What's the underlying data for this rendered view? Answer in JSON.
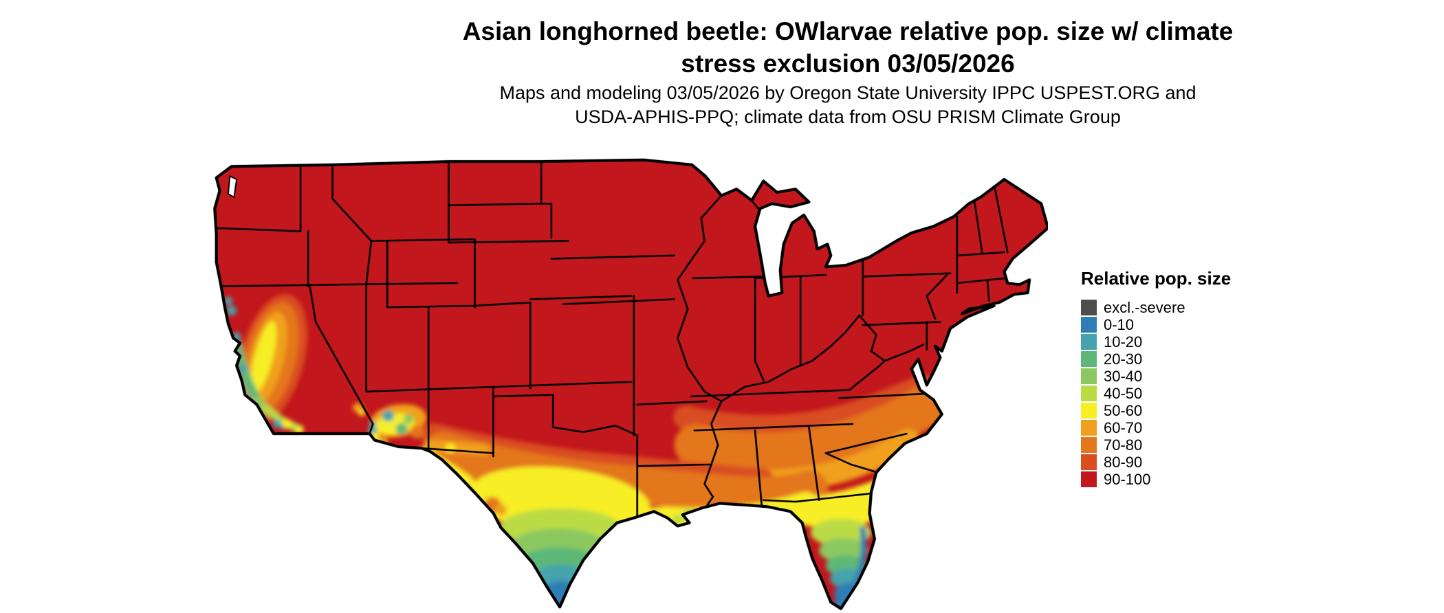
{
  "title": {
    "line1": "Asian longhorned beetle: OWlarvae relative pop. size w/ climate",
    "line2": "stress exclusion 03/05/2026"
  },
  "subtitle": {
    "line1": "Maps and modeling 03/05/2026 by Oregon State University IPPC USPEST.ORG and",
    "line2": "USDA-APHIS-PPQ; climate data from OSU PRISM Climate Group"
  },
  "legend": {
    "title": "Relative pop. size",
    "items": [
      {
        "label": "excl.-severe",
        "color": "#4D4D4D"
      },
      {
        "label": "0-10",
        "color": "#2E7EB5"
      },
      {
        "label": "10-20",
        "color": "#45A3AD"
      },
      {
        "label": "20-30",
        "color": "#5DB878"
      },
      {
        "label": "30-40",
        "color": "#8CC860"
      },
      {
        "label": "40-50",
        "color": "#BBDB45"
      },
      {
        "label": "50-60",
        "color": "#F7EE26"
      },
      {
        "label": "60-70",
        "color": "#F0A01E"
      },
      {
        "label": "70-80",
        "color": "#E4761F"
      },
      {
        "label": "80-90",
        "color": "#D94D20"
      },
      {
        "label": "90-100",
        "color": "#C2171D"
      }
    ]
  },
  "map": {
    "region": "Continental United States",
    "border_color": "#000000",
    "water_background": "#FFFFFF",
    "dominant_bin": "90-100"
  },
  "chart_data": {
    "type": "heatmap",
    "title": "Asian longhorned beetle: OWlarvae relative pop. size w/ climate stress exclusion 03/05/2026",
    "legend_title": "Relative pop. size",
    "legend_position": "right",
    "bins": [
      "excl.-severe",
      "0-10",
      "10-20",
      "20-30",
      "30-40",
      "40-50",
      "50-60",
      "60-70",
      "70-80",
      "80-90",
      "90-100"
    ],
    "bin_colors": [
      "#4D4D4D",
      "#2E7EB5",
      "#45A3AD",
      "#5DB878",
      "#8CC860",
      "#BBDB45",
      "#F7EE26",
      "#F0A01E",
      "#E4761F",
      "#D94D20",
      "#C2171D"
    ],
    "regional_pattern": [
      {
        "region": "Most of CONUS (north, interior, east)",
        "value": "90-100"
      },
      {
        "region": "Central MS-AL-GA-SC band",
        "value": "70-90"
      },
      {
        "region": "Gulf Coast, south GA, north FL",
        "value": "50-70"
      },
      {
        "region": "Central and coastal south Texas",
        "value": "40-60"
      },
      {
        "region": "South Texas Rio Grande Valley tip",
        "value": "0-40"
      },
      {
        "region": "Central Florida peninsula",
        "value": "20-50"
      },
      {
        "region": "South Florida tip and east coast strip",
        "value": "0-20"
      },
      {
        "region": "California Central Valley and foothills",
        "value": "50-80"
      },
      {
        "region": "California coast",
        "value": "10-50"
      },
      {
        "region": "Southwest Arizona and lower Colorado River",
        "value": "10-60"
      }
    ]
  }
}
